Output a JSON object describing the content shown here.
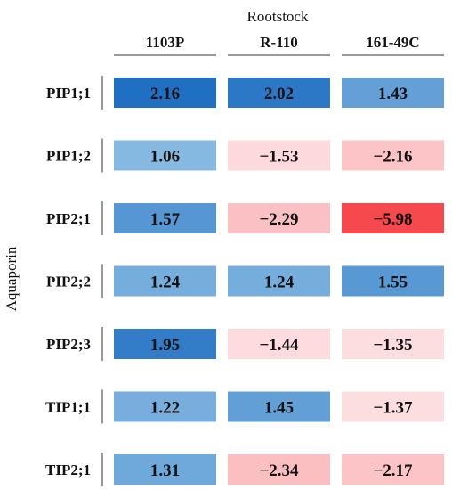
{
  "chart_data": {
    "type": "heatmap",
    "xlabel": "Rootstock",
    "ylabel": "Aquaporin",
    "columns": [
      "1103P",
      "R-110",
      "161-49C"
    ],
    "rows": [
      "PIP1;1",
      "PIP1;2",
      "PIP2;1",
      "PIP2;2",
      "PIP2;3",
      "TIP1;1",
      "TIP2;1"
    ],
    "values": [
      [
        2.16,
        2.02,
        1.43
      ],
      [
        1.06,
        -1.53,
        -2.16
      ],
      [
        1.57,
        -2.29,
        -5.98
      ],
      [
        1.24,
        1.24,
        1.55
      ],
      [
        1.95,
        -1.44,
        -1.35
      ],
      [
        1.22,
        1.45,
        -1.37
      ],
      [
        1.31,
        -2.34,
        -2.17
      ]
    ],
    "value_labels": [
      [
        "2.16",
        "2.02",
        "1.43"
      ],
      [
        "1.06",
        "−1.53",
        "−2.16"
      ],
      [
        "1.57",
        "−2.29",
        "−5.98"
      ],
      [
        "1.24",
        "1.24",
        "1.55"
      ],
      [
        "1.95",
        "−1.44",
        "−1.35"
      ],
      [
        "1.22",
        "1.45",
        "−1.37"
      ],
      [
        "1.31",
        "−2.34",
        "−2.17"
      ]
    ],
    "colors": {
      "positive_high": "#1f6fc2",
      "positive_low": "#8cbde3",
      "negative_low": "#fde0e2",
      "negative_high": "#f5494e"
    }
  }
}
